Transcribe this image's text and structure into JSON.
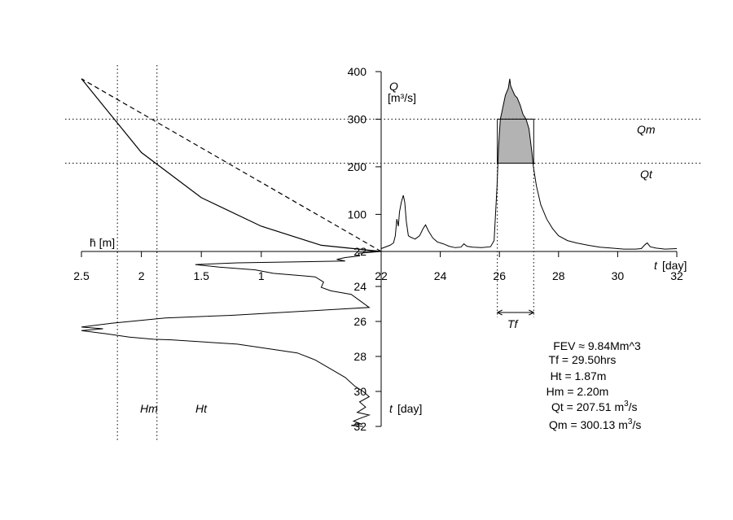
{
  "chart_data": [
    {
      "type": "line",
      "panel": "hydrograph",
      "xlabel_symbol": "t",
      "xlabel_unit": "[day]",
      "ylabel_line1": "Q",
      "ylabel_line2": "[m³/s]",
      "xlim": [
        22,
        32
      ],
      "ylim": [
        22,
        400
      ],
      "x_ticks": [
        22,
        24,
        26,
        28,
        30,
        32
      ],
      "x_tick_labels": [
        "22",
        "24",
        "26",
        "28",
        "30",
        "32"
      ],
      "y_ticks": [
        100,
        200,
        300,
        400
      ],
      "y_tick_labels": [
        "100",
        "200",
        "300",
        "400"
      ],
      "y_origin_label": "22",
      "series": [
        {
          "x": [
            22,
            22.3,
            22.42,
            22.48,
            22.53,
            22.58,
            22.62,
            22.68,
            22.75,
            22.8,
            22.85,
            22.92,
            23.0,
            23.15,
            23.3,
            23.42,
            23.5,
            23.6,
            23.75,
            23.9,
            24.1,
            24.3,
            24.5,
            24.7,
            24.8,
            24.9,
            25.1,
            25.4,
            25.7,
            25.82,
            25.86,
            25.92,
            25.97,
            26.03,
            26.1,
            26.2,
            26.3,
            26.35,
            26.38,
            26.45,
            26.52,
            26.6,
            26.7,
            26.8,
            26.9,
            27.0,
            27.1,
            27.15,
            27.25,
            27.4,
            27.6,
            27.8,
            28.0,
            28.3,
            28.6,
            29.0,
            29.4,
            29.8,
            30.2,
            30.6,
            30.8,
            30.92,
            31.0,
            31.1,
            31.3,
            31.6,
            32.0
          ],
          "y": [
            28,
            35,
            40,
            55,
            90,
            75,
            105,
            125,
            140,
            125,
            85,
            55,
            52,
            48,
            55,
            70,
            78,
            65,
            50,
            42,
            38,
            33,
            30,
            31,
            38,
            33,
            31,
            30,
            32,
            45,
            90,
            160,
            240,
            300,
            320,
            350,
            365,
            385,
            370,
            360,
            350,
            345,
            330,
            310,
            300,
            280,
            230,
            200,
            160,
            120,
            90,
            70,
            55,
            45,
            40,
            35,
            31,
            29,
            27,
            27,
            28,
            36,
            40,
            32,
            29,
            27,
            28
          ]
        }
      ],
      "thresholds": [
        {
          "label": "Qm",
          "value": 300.13
        },
        {
          "label": "Qt",
          "value": 207.51
        }
      ],
      "event_window": {
        "start_day": 25.93,
        "end_day": 27.16,
        "label": "Tf"
      }
    },
    {
      "type": "line",
      "panel": "depth-vs-time",
      "xlabel": "h̄ [m]",
      "ylabel_symbol": "t",
      "ylabel_unit": "[day]",
      "xlim": [
        2.5,
        0
      ],
      "ylim": [
        22,
        32
      ],
      "x_ticks": [
        2.5,
        2,
        1.5,
        1
      ],
      "x_tick_labels": [
        "2.5",
        "2",
        "1.5",
        "1"
      ],
      "y_ticks": [
        24,
        26,
        28,
        30,
        32
      ],
      "y_tick_labels": [
        "24",
        "26",
        "28",
        "30",
        "32"
      ],
      "series": [
        {
          "h": [
            0.0,
            0.19,
            0.18,
            0.3,
            0.37,
            0.3,
            1.2,
            1.55,
            1.35,
            1.05,
            0.9,
            0.55,
            0.48,
            0.5,
            0.42,
            0.25,
            0.18,
            0.1,
            1.25,
            1.8,
            2.25,
            2.5,
            2.32,
            2.5,
            2.3,
            2.1,
            1.9,
            1.75,
            1.2,
            0.7,
            0.55,
            0.4,
            0.3,
            0.22,
            0.15,
            0.1,
            0.18,
            0.13,
            0.2,
            0.1,
            0.18,
            0.23,
            0.17,
            0.25,
            0.15
          ],
          "t": [
            22.0,
            22.1,
            22.25,
            22.35,
            22.45,
            22.55,
            22.65,
            22.75,
            22.9,
            23.05,
            23.25,
            23.45,
            23.75,
            24.05,
            24.25,
            24.45,
            24.8,
            25.2,
            25.65,
            25.8,
            26.1,
            26.32,
            26.42,
            26.52,
            26.7,
            26.9,
            27.02,
            27.05,
            27.3,
            27.8,
            28.2,
            28.8,
            29.2,
            29.7,
            30.0,
            30.3,
            30.6,
            30.9,
            31.2,
            31.35,
            31.55,
            31.7,
            31.85,
            31.95,
            32.0
          ]
        }
      ],
      "thresholds": [
        {
          "label": "Hm",
          "value": 2.2
        },
        {
          "label": "Ht",
          "value": 1.87
        }
      ]
    },
    {
      "type": "line",
      "panel": "rating-curve",
      "series": [
        {
          "style": "solid",
          "points": [
            [
              0,
              22
            ],
            [
              0.5,
              35
            ],
            [
              1.0,
              75
            ],
            [
              1.5,
              135
            ],
            [
              2.0,
              230
            ],
            [
              2.5,
              385
            ]
          ]
        },
        {
          "style": "dashed",
          "points": [
            [
              0,
              22
            ],
            [
              2.5,
              385
            ]
          ]
        }
      ]
    }
  ],
  "annotations": {
    "fev": "FEV ≈ 9.84Mm^3",
    "tf": "Tf = 29.50hrs",
    "ht": "Ht = 1.87m",
    "hm": "Hm = 2.20m",
    "qt_prefix": "Qt = 207.51 m",
    "qm_prefix": "Qm = 300.13 m",
    "unit_exp": "3",
    "unit_tail": "/s",
    "tf_label": "Tf"
  },
  "colors": {
    "shade": "#b3b3b3",
    "line": "#000000"
  }
}
